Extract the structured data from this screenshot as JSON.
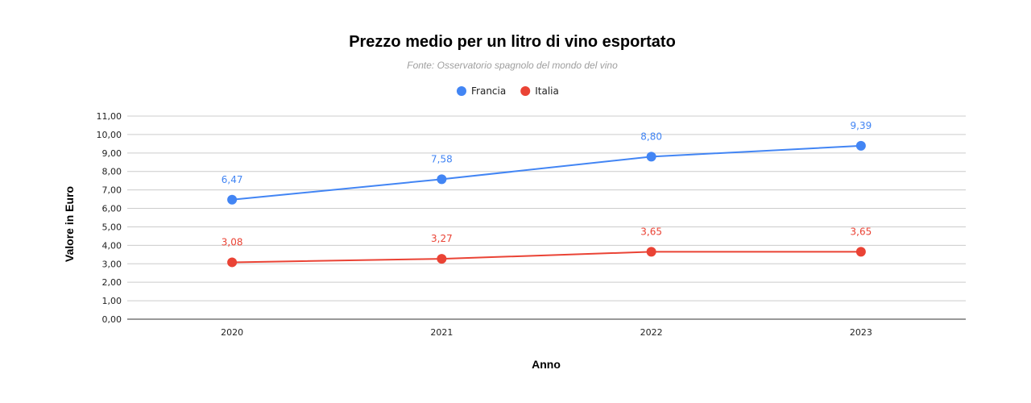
{
  "chart_data": {
    "type": "line",
    "title": "Prezzo medio per un litro di vino esportato",
    "subtitle": "Fonte: Osservatorio spagnolo del mondo del vino",
    "xlabel": "Anno",
    "ylabel": "Valore in Euro",
    "categories": [
      "2020",
      "2021",
      "2022",
      "2023"
    ],
    "ylim": [
      0,
      11
    ],
    "y_ticks": [
      "0,00",
      "1,00",
      "2,00",
      "3,00",
      "4,00",
      "5,00",
      "6,00",
      "7,00",
      "8,00",
      "9,00",
      "10,00",
      "11,00"
    ],
    "grid": true,
    "legend_position": "top-center",
    "series": [
      {
        "name": "Francia",
        "color": "#4285f4",
        "values": [
          6.47,
          7.58,
          8.8,
          9.39
        ],
        "labels": [
          "6,47",
          "7,58",
          "8,80",
          "9,39"
        ]
      },
      {
        "name": "Italia",
        "color": "#ea4335",
        "values": [
          3.08,
          3.27,
          3.65,
          3.65
        ],
        "labels": [
          "3,08",
          "3,27",
          "3,65",
          "3,65"
        ]
      }
    ]
  }
}
